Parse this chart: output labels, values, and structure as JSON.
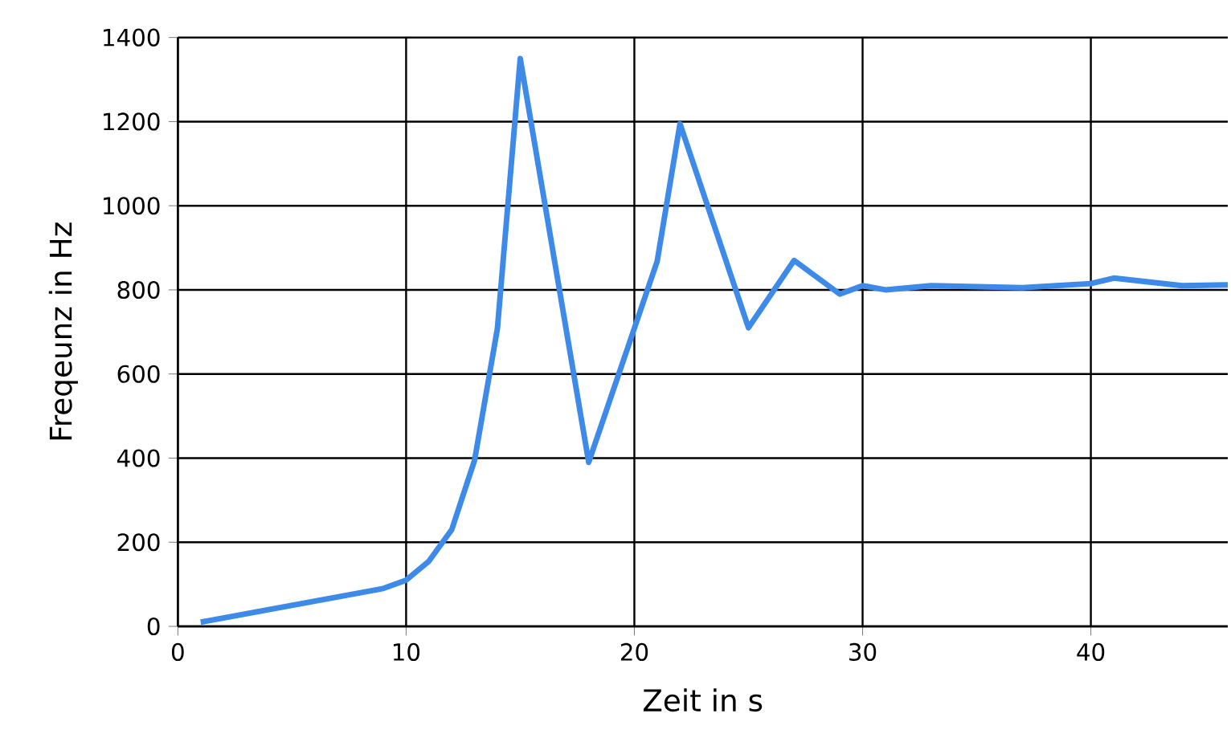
{
  "chart_data": {
    "type": "line",
    "xlabel": "Zeit in s",
    "ylabel": "Freqeunz in Hz",
    "x": [
      1,
      9,
      10,
      11,
      12,
      13,
      14,
      15,
      18,
      21,
      22,
      25,
      27,
      29,
      30,
      31,
      33,
      37,
      40,
      41,
      44,
      46
    ],
    "series": [
      {
        "color": "#3d8ae8",
        "values": [
          10,
          90,
          110,
          155,
          230,
          395,
          708,
          1350,
          390,
          868,
          1195,
          710,
          870,
          790,
          810,
          800,
          810,
          805,
          815,
          828,
          810,
          812
        ]
      }
    ],
    "xlim": [
      0,
      46
    ],
    "ylim": [
      0,
      1400
    ],
    "xticks": [
      0,
      10,
      20,
      30,
      40
    ],
    "yticks": [
      0,
      200,
      400,
      600,
      800,
      1000,
      1200,
      1400
    ],
    "grid": true,
    "marker": "none",
    "line_style": "solid"
  }
}
